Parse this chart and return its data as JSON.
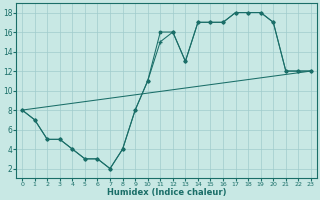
{
  "background_color": "#c8e8e4",
  "grid_color": "#a0cccc",
  "line_color": "#1a6e68",
  "xlabel": "Humidex (Indice chaleur)",
  "xlim": [
    -0.5,
    23.5
  ],
  "ylim": [
    1,
    19
  ],
  "xticks": [
    0,
    1,
    2,
    3,
    4,
    5,
    6,
    7,
    8,
    9,
    10,
    11,
    12,
    13,
    14,
    15,
    16,
    17,
    18,
    19,
    20,
    21,
    22,
    23
  ],
  "yticks": [
    2,
    4,
    6,
    8,
    10,
    12,
    14,
    16,
    18
  ],
  "line1_x": [
    0,
    1,
    2,
    3,
    4,
    5,
    6,
    7,
    8,
    9,
    10,
    11,
    12,
    13,
    14,
    15,
    16,
    17,
    18,
    19,
    20,
    21,
    22,
    23
  ],
  "line1_y": [
    8,
    7,
    5,
    5,
    4,
    3,
    3,
    2,
    4,
    8,
    11,
    16,
    16,
    13,
    17,
    17,
    17,
    18,
    18,
    18,
    17,
    12,
    12,
    12
  ],
  "line2_x": [
    0,
    1,
    2,
    3,
    4,
    5,
    6,
    7,
    8,
    9,
    10,
    11,
    12,
    13,
    14,
    15,
    16,
    17,
    18,
    19,
    20,
    21,
    22,
    23
  ],
  "line2_y": [
    8,
    7,
    5,
    5,
    4,
    3,
    3,
    2,
    4,
    8,
    11,
    15,
    16,
    13,
    17,
    17,
    17,
    18,
    18,
    18,
    17,
    12,
    12,
    12
  ],
  "line3_x": [
    0,
    23
  ],
  "line3_y": [
    8,
    12
  ]
}
